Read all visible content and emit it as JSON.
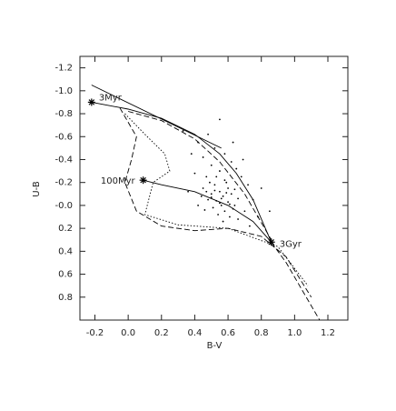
{
  "chart_data": {
    "type": "line",
    "xlabel": "B-V",
    "ylabel": "U-B",
    "xlim": [
      -0.29,
      1.32
    ],
    "ylim": [
      -1.3,
      1.0
    ],
    "y_inverted": true,
    "xticks": [
      -0.2,
      {
        "value": 0,
        "label": "0.0"
      },
      0.2,
      0.4,
      0.6,
      0.8,
      {
        "value": 1,
        "label": "1.0"
      },
      1.2
    ],
    "yticks": [
      -1.2,
      {
        "value": -1,
        "label": "-1.0"
      },
      -0.8,
      -0.6,
      -0.4,
      -0.2,
      {
        "value": 0,
        "label": "-0.0"
      },
      0.2,
      0.4,
      0.6,
      0.8
    ],
    "series": [
      {
        "style": "solid",
        "color": "#000000",
        "x": [
          -0.22,
          0.56
        ],
        "y": [
          -1.05,
          -0.5
        ]
      },
      {
        "style": "solid",
        "color": "#000000",
        "x": [
          -0.22,
          0.0,
          0.2,
          0.4,
          0.55,
          0.65,
          0.75,
          0.86
        ],
        "y": [
          -0.9,
          -0.84,
          -0.76,
          -0.62,
          -0.45,
          -0.28,
          -0.05,
          0.32
        ]
      },
      {
        "style": "solid",
        "color": "#000000",
        "x": [
          0.09,
          0.2,
          0.4,
          0.6,
          0.75,
          0.86
        ],
        "y": [
          -0.22,
          -0.18,
          -0.12,
          0.0,
          0.14,
          0.32
        ]
      },
      {
        "style": "dashed",
        "color": "#000000",
        "x": [
          0.86,
          0.95,
          1.05,
          1.15
        ],
        "y": [
          0.32,
          0.5,
          0.75,
          1.0
        ]
      },
      {
        "style": "dashed",
        "color": "#000000",
        "x": [
          0.0,
          0.2,
          0.4,
          0.55,
          0.7,
          0.86
        ],
        "y": [
          -0.82,
          -0.74,
          -0.58,
          -0.38,
          -0.1,
          0.3
        ]
      },
      {
        "style": "dashed",
        "color": "#000000",
        "x": [
          -0.05,
          0.05,
          0.02,
          -0.02,
          0.05,
          0.2,
          0.4,
          0.6,
          0.8,
          0.95,
          1.1
        ],
        "y": [
          -0.85,
          -0.6,
          -0.4,
          -0.2,
          0.05,
          0.18,
          0.22,
          0.2,
          0.27,
          0.45,
          0.8
        ]
      },
      {
        "style": "dotted",
        "color": "#000000",
        "x": [
          -0.02,
          0.1,
          0.22,
          0.25,
          0.15,
          0.1,
          0.3,
          0.6,
          0.9,
          1.08
        ],
        "y": [
          -0.8,
          -0.62,
          -0.45,
          -0.3,
          -0.2,
          0.08,
          0.17,
          0.2,
          0.36,
          0.7
        ]
      }
    ],
    "points": {
      "color": "#000000",
      "x": [
        0.42,
        0.48,
        0.52,
        0.58,
        0.45,
        0.62,
        0.5,
        0.55,
        0.65,
        0.4,
        0.47,
        0.58,
        0.68,
        0.72,
        0.52,
        0.6,
        0.45,
        0.55,
        0.5,
        0.57,
        0.62,
        0.48,
        0.53,
        0.6,
        0.66,
        0.56,
        0.51,
        0.63,
        0.58,
        0.46,
        0.54,
        0.61,
        0.7,
        0.75,
        0.44,
        0.42,
        0.36,
        0.59,
        0.64,
        0.53,
        0.49,
        0.66,
        0.57,
        0.78,
        0.8,
        0.69,
        0.38,
        0.33,
        0.55,
        0.63,
        0.56,
        0.55,
        0.59,
        0.52,
        0.61,
        0.5,
        0.64,
        0.47,
        0.73,
        0.85
      ],
      "y": [
        -0.55,
        -0.62,
        -0.5,
        -0.45,
        -0.42,
        -0.38,
        -0.35,
        -0.3,
        -0.32,
        -0.28,
        -0.25,
        -0.22,
        -0.25,
        -0.18,
        -0.18,
        -0.15,
        -0.15,
        -0.12,
        -0.1,
        -0.08,
        -0.1,
        -0.05,
        -0.04,
        -0.03,
        -0.06,
        0.0,
        0.02,
        0.03,
        0.05,
        0.04,
        0.08,
        0.1,
        0.05,
        -0.05,
        -0.08,
        0.0,
        -0.12,
        -0.2,
        -0.14,
        -0.25,
        -0.2,
        0.12,
        0.14,
        0.1,
        -0.15,
        -0.4,
        -0.45,
        -0.65,
        -0.75,
        -0.55,
        -0.06,
        -0.02,
        -0.11,
        -0.13,
        -0.01,
        -0.07,
        0.0,
        -0.12,
        0.18,
        0.05
      ]
    },
    "annotations": [
      {
        "text": "3Myr",
        "x": -0.22,
        "y": -0.9
      },
      {
        "text": "100Myr",
        "x": 0.09,
        "y": -0.22
      },
      {
        "text": "3Gyr",
        "x": 0.86,
        "y": 0.32
      }
    ]
  }
}
